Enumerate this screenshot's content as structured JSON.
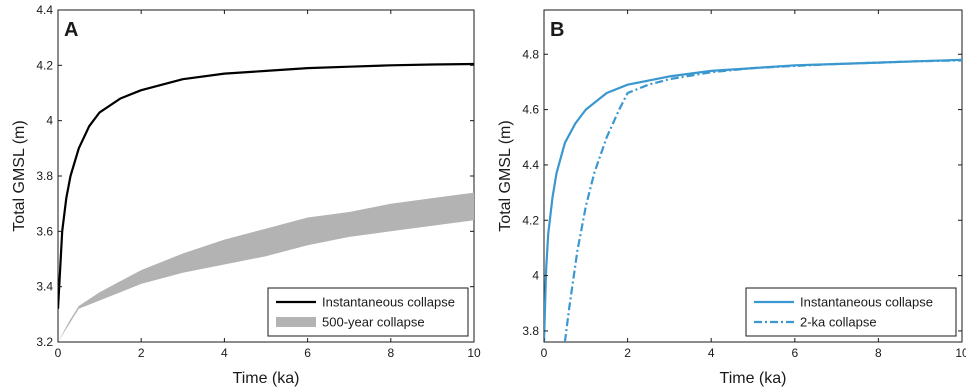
{
  "chart_data": [
    {
      "panel": "A",
      "type": "line",
      "xlabel": "Time (ka)",
      "ylabel": "Total GMSL (m)",
      "xlim": [
        0,
        10
      ],
      "ylim": [
        3.2,
        4.4
      ],
      "xticks": [
        0,
        2,
        4,
        6,
        8,
        10
      ],
      "yticks": [
        3.2,
        3.4,
        3.6,
        3.8,
        4,
        4.2,
        4.4
      ],
      "ytick_labels": [
        "3.2",
        "3.4",
        "3.6",
        "3.8",
        "4",
        "4.2",
        "4.4"
      ],
      "legend_position": "bottom-right",
      "series": [
        {
          "name": "Instantaneous collapse",
          "style": "solid",
          "color": "#000000",
          "x": [
            0,
            0.1,
            0.2,
            0.3,
            0.5,
            0.75,
            1,
            1.5,
            2,
            2.5,
            3,
            4,
            5,
            6,
            7,
            8,
            9,
            10
          ],
          "y": [
            3.32,
            3.6,
            3.72,
            3.8,
            3.9,
            3.98,
            4.03,
            4.08,
            4.11,
            4.13,
            4.15,
            4.17,
            4.18,
            4.19,
            4.195,
            4.2,
            4.203,
            4.205
          ]
        },
        {
          "name": "500-year collapse",
          "style": "band",
          "color": "#b3b3b3",
          "x": [
            0,
            0.25,
            0.5,
            1,
            1.5,
            2,
            3,
            4,
            5,
            6,
            7,
            8,
            9,
            10
          ],
          "y_low": [
            3.2,
            3.26,
            3.32,
            3.35,
            3.38,
            3.41,
            3.45,
            3.48,
            3.51,
            3.55,
            3.58,
            3.6,
            3.62,
            3.64
          ],
          "y_high": [
            3.2,
            3.27,
            3.33,
            3.38,
            3.42,
            3.46,
            3.52,
            3.57,
            3.61,
            3.65,
            3.67,
            3.7,
            3.72,
            3.74
          ]
        }
      ]
    },
    {
      "panel": "B",
      "type": "line",
      "xlabel": "Time (ka)",
      "ylabel": "Total GMSL (m)",
      "xlim": [
        0,
        10
      ],
      "ylim": [
        3.76,
        4.96
      ],
      "xticks": [
        0,
        2,
        4,
        6,
        8,
        10
      ],
      "yticks": [
        3.8,
        4,
        4.2,
        4.4,
        4.6,
        4.8
      ],
      "ytick_labels": [
        "3.8",
        "4",
        "4.2",
        "4.4",
        "4.6",
        "4.8"
      ],
      "legend_position": "bottom-right",
      "series": [
        {
          "name": "Instantaneous collapse",
          "style": "solid",
          "color": "#3a97cf",
          "x": [
            0,
            0.05,
            0.1,
            0.2,
            0.3,
            0.5,
            0.75,
            1,
            1.5,
            2,
            3,
            4,
            5,
            6,
            7,
            8,
            9,
            10
          ],
          "y": [
            3.76,
            4.02,
            4.15,
            4.28,
            4.37,
            4.48,
            4.55,
            4.6,
            4.66,
            4.69,
            4.72,
            4.74,
            4.75,
            4.76,
            4.765,
            4.77,
            4.775,
            4.78
          ]
        },
        {
          "name": "2-ka collapse",
          "style": "dash-dot",
          "color": "#3a97cf",
          "x": [
            0.5,
            0.6,
            0.8,
            1,
            1.2,
            1.5,
            1.8,
            2,
            2.5,
            3,
            4,
            5,
            6,
            7,
            8,
            9,
            10
          ],
          "y": [
            3.76,
            3.88,
            4.09,
            4.25,
            4.37,
            4.5,
            4.6,
            4.66,
            4.69,
            4.71,
            4.735,
            4.75,
            4.758,
            4.765,
            4.77,
            4.775,
            4.778
          ]
        }
      ]
    }
  ]
}
